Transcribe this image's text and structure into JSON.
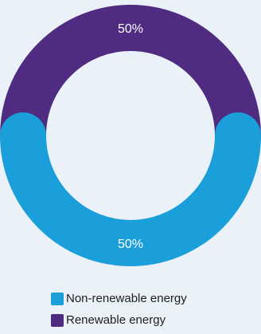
{
  "chart_data": {
    "type": "pie",
    "title": "",
    "slices": [
      {
        "label": "Non-renewable energy",
        "value": 50,
        "display": "50%",
        "color": "#1a9fdb"
      },
      {
        "label": "Renewable energy",
        "value": 50,
        "display": "50%",
        "color": "#4f2c82"
      }
    ],
    "legend_placement": "bottom"
  },
  "style": {
    "background": "#eaf1f8",
    "label_color": "#ffffff",
    "legend_text_color": "#1e1e1e"
  }
}
